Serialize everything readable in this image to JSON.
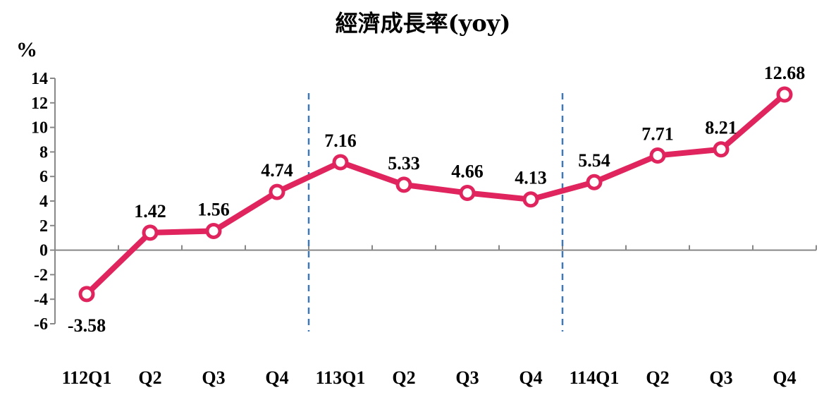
{
  "chart_data": {
    "type": "line",
    "title": "經濟成長率(yoy)",
    "unit": "%",
    "categories": [
      "112Q1",
      "Q2",
      "Q3",
      "Q4",
      "113Q1",
      "Q2",
      "Q3",
      "Q4",
      "114Q1",
      "Q2",
      "Q3",
      "Q4"
    ],
    "series": [
      {
        "values": [
          -3.58,
          1.42,
          1.56,
          4.74,
          7.16,
          5.33,
          4.66,
          4.13,
          5.54,
          7.71,
          8.21,
          12.68
        ],
        "labels": [
          "-3.58",
          "1.42",
          "1.56",
          "4.74",
          "7.16",
          "5.33",
          "4.66",
          "4.13",
          "5.54",
          "7.71",
          "8.21",
          "12.68"
        ],
        "color": "#e0245e"
      }
    ],
    "ylim": [
      -6,
      14
    ],
    "yticks": [
      14,
      12,
      10,
      8,
      6,
      4,
      2,
      0,
      -2,
      -4,
      -6
    ],
    "ytick_labels": [
      "14",
      "12",
      "10",
      "8",
      "6",
      "4",
      "2",
      "0",
      "-2",
      "-4",
      "-6"
    ],
    "year_dividers_after": [
      3,
      7
    ],
    "divider_color": "#3f78b5",
    "grid": false,
    "legend": "none"
  }
}
